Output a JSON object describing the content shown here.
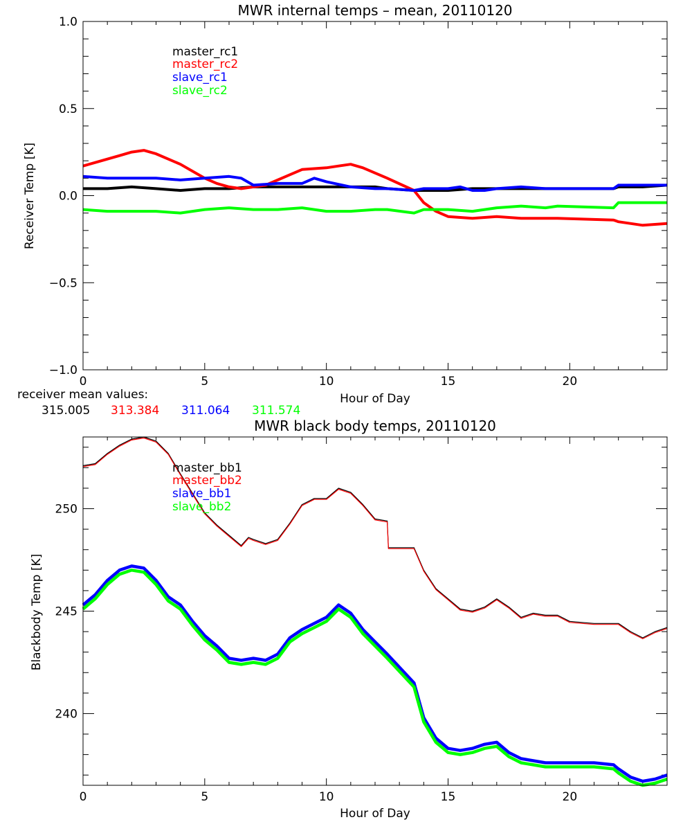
{
  "chart_data": [
    {
      "type": "line",
      "title": "MWR internal temps – mean, 20110120",
      "xlabel": "Hour of Day",
      "ylabel": "Receiver Temp [K]",
      "xlim": [
        0,
        24
      ],
      "ylim": [
        -1.0,
        1.0
      ],
      "xticks": [
        0,
        5,
        10,
        15,
        20
      ],
      "xtick_labels": [
        "0",
        "5",
        "10",
        "15",
        "20"
      ],
      "yticks": [
        -1.0,
        -0.5,
        0.0,
        0.5,
        1.0
      ],
      "ytick_labels": [
        "−1.0",
        "−0.5",
        "0.0",
        "0.5",
        "1.0"
      ],
      "grid": false,
      "legend_position": "top-left",
      "series": [
        {
          "name": "master_rc1",
          "color": "#000000",
          "x": [
            0,
            1,
            2,
            3,
            4,
            5,
            6,
            7,
            8,
            9,
            10,
            11,
            12,
            12.5,
            13.6,
            14,
            15,
            16,
            17,
            18,
            19,
            19.5,
            21.8,
            22,
            23,
            24
          ],
          "y": [
            0.04,
            0.04,
            0.05,
            0.04,
            0.03,
            0.04,
            0.04,
            0.05,
            0.05,
            0.05,
            0.05,
            0.05,
            0.05,
            0.04,
            0.03,
            0.03,
            0.03,
            0.04,
            0.04,
            0.04,
            0.04,
            0.04,
            0.04,
            0.05,
            0.05,
            0.06
          ]
        },
        {
          "name": "master_rc2",
          "color": "#ff0000",
          "x": [
            0,
            0.5,
            1,
            1.5,
            2,
            2.5,
            3,
            4,
            5,
            5.5,
            6,
            6.5,
            7,
            7.5,
            8,
            8.5,
            9,
            10,
            10.5,
            11,
            11.5,
            12,
            12.5,
            13.6,
            14,
            14.5,
            15,
            16,
            17,
            18,
            19,
            19.5,
            21.8,
            22,
            23,
            24
          ],
          "y": [
            0.17,
            0.19,
            0.21,
            0.23,
            0.25,
            0.26,
            0.24,
            0.18,
            0.1,
            0.07,
            0.05,
            0.04,
            0.05,
            0.06,
            0.09,
            0.12,
            0.15,
            0.16,
            0.17,
            0.18,
            0.16,
            0.13,
            0.1,
            0.03,
            -0.04,
            -0.09,
            -0.12,
            -0.13,
            -0.12,
            -0.13,
            -0.13,
            -0.13,
            -0.14,
            -0.15,
            -0.17,
            -0.16
          ]
        },
        {
          "name": "slave_rc1",
          "color": "#0000ff",
          "x": [
            0,
            1,
            2,
            3,
            4,
            5,
            6,
            6.5,
            7,
            8,
            9,
            9.5,
            10,
            11,
            12,
            12.5,
            13.6,
            14,
            15,
            15.5,
            16,
            16.5,
            17,
            18,
            19,
            19.5,
            21.8,
            22,
            23,
            24
          ],
          "y": [
            0.11,
            0.1,
            0.1,
            0.1,
            0.09,
            0.1,
            0.11,
            0.1,
            0.06,
            0.07,
            0.07,
            0.1,
            0.08,
            0.05,
            0.04,
            0.04,
            0.03,
            0.04,
            0.04,
            0.05,
            0.03,
            0.03,
            0.04,
            0.05,
            0.04,
            0.04,
            0.04,
            0.06,
            0.06,
            0.06
          ]
        },
        {
          "name": "slave_rc2",
          "color": "#00ff00",
          "x": [
            0,
            1,
            2,
            3,
            4,
            5,
            6,
            7,
            8,
            9,
            10,
            11,
            12,
            12.5,
            13.6,
            14,
            15,
            16,
            17,
            18,
            19,
            19.5,
            21.8,
            22,
            23,
            24
          ],
          "y": [
            -0.08,
            -0.09,
            -0.09,
            -0.09,
            -0.1,
            -0.08,
            -0.07,
            -0.08,
            -0.08,
            -0.07,
            -0.09,
            -0.09,
            -0.08,
            -0.08,
            -0.1,
            -0.08,
            -0.08,
            -0.09,
            -0.07,
            -0.06,
            -0.07,
            -0.06,
            -0.07,
            -0.04,
            -0.04,
            -0.04
          ]
        }
      ],
      "annotation": {
        "label": "receiver mean values:",
        "values": [
          {
            "text": "315.005",
            "color": "#000000"
          },
          {
            "text": "313.384",
            "color": "#ff0000"
          },
          {
            "text": "311.064",
            "color": "#0000ff"
          },
          {
            "text": "311.574",
            "color": "#00ff00"
          }
        ]
      }
    },
    {
      "type": "line",
      "title": "MWR black body temps, 20110120",
      "xlabel": "Hour of Day",
      "ylabel": "Blackbody Temp [K]",
      "xlim": [
        0,
        24
      ],
      "ylim": [
        236.5,
        253.5
      ],
      "xticks": [
        0,
        5,
        10,
        15,
        20
      ],
      "xtick_labels": [
        "0",
        "5",
        "10",
        "15",
        "20"
      ],
      "yticks": [
        240,
        245,
        250
      ],
      "ytick_labels": [
        "240",
        "245",
        "250"
      ],
      "grid": false,
      "legend_position": "top-left",
      "series": [
        {
          "name": "master_bb1",
          "color": "#000000",
          "x": [
            0,
            0.5,
            1,
            1.5,
            2,
            2.5,
            3,
            3.5,
            4,
            5,
            5.5,
            6,
            6.5,
            6.8,
            7,
            7.5,
            8,
            8.5,
            9,
            9.5,
            10,
            10.5,
            11,
            11.5,
            12,
            12.5,
            12.55,
            13.6,
            14,
            14.5,
            15,
            15.5,
            16,
            16.5,
            17,
            17.5,
            18,
            18.5,
            19,
            19.5,
            20,
            21,
            22,
            22.5,
            23,
            23.5,
            24
          ],
          "y": [
            252.1,
            252.2,
            252.7,
            253.1,
            253.4,
            253.5,
            253.3,
            252.7,
            251.7,
            249.8,
            249.2,
            248.7,
            248.2,
            248.6,
            248.5,
            248.3,
            248.5,
            249.3,
            250.2,
            250.5,
            250.5,
            251.0,
            250.8,
            250.2,
            249.5,
            249.4,
            248.1,
            248.1,
            247.0,
            246.1,
            245.6,
            245.1,
            245.0,
            245.2,
            245.6,
            245.2,
            244.7,
            244.9,
            244.8,
            244.8,
            244.5,
            244.4,
            244.4,
            244.0,
            243.7,
            244.0,
            244.2
          ]
        },
        {
          "name": "master_bb2",
          "color": "#ff0000",
          "x": [
            0,
            0.5,
            1,
            1.5,
            2,
            2.5,
            3,
            3.5,
            4,
            5,
            5.5,
            6,
            6.5,
            6.8,
            7,
            7.5,
            8,
            8.5,
            9,
            9.5,
            10,
            10.5,
            11,
            11.5,
            12,
            12.5,
            12.55,
            13.6,
            14,
            14.5,
            15,
            15.5,
            16,
            16.5,
            17,
            17.5,
            18,
            18.5,
            19,
            19.5,
            20,
            21,
            22,
            22.5,
            23,
            23.5,
            24
          ],
          "y": [
            252.05,
            252.15,
            252.65,
            253.05,
            253.35,
            253.45,
            253.25,
            252.65,
            251.65,
            249.75,
            249.15,
            248.65,
            248.15,
            248.55,
            248.45,
            248.25,
            248.45,
            249.25,
            250.15,
            250.45,
            250.45,
            250.95,
            250.75,
            250.15,
            249.45,
            249.35,
            248.05,
            248.05,
            246.95,
            246.05,
            245.55,
            245.05,
            244.95,
            245.15,
            245.55,
            245.15,
            244.65,
            244.85,
            244.75,
            244.75,
            244.45,
            244.35,
            244.35,
            243.95,
            243.65,
            243.95,
            244.15
          ]
        },
        {
          "name": "slave_bb1",
          "color": "#0000ff",
          "x": [
            0,
            0.5,
            1,
            1.5,
            2,
            2.5,
            3,
            3.5,
            4,
            4.5,
            5,
            5.5,
            6,
            6.5,
            7,
            7.5,
            8,
            8.5,
            9,
            9.5,
            10,
            10.5,
            11,
            11.5,
            12,
            12.5,
            13.6,
            14,
            14.5,
            15,
            15.5,
            16,
            16.5,
            17,
            17.5,
            18,
            18.5,
            19,
            19.5,
            20,
            21,
            21.8,
            22,
            22.5,
            23,
            23.5,
            24
          ],
          "y": [
            245.3,
            245.8,
            246.5,
            247.0,
            247.2,
            247.1,
            246.5,
            245.7,
            245.3,
            244.5,
            243.8,
            243.3,
            242.7,
            242.6,
            242.7,
            242.6,
            242.9,
            243.7,
            244.1,
            244.4,
            244.7,
            245.3,
            244.9,
            244.1,
            243.5,
            242.9,
            241.5,
            239.8,
            238.8,
            238.3,
            238.2,
            238.3,
            238.5,
            238.6,
            238.1,
            237.8,
            237.7,
            237.6,
            237.6,
            237.6,
            237.6,
            237.5,
            237.3,
            236.9,
            236.7,
            236.8,
            237.0
          ]
        },
        {
          "name": "slave_bb2",
          "color": "#00ff00",
          "x": [
            0,
            0.5,
            1,
            1.5,
            2,
            2.5,
            3,
            3.5,
            4,
            4.5,
            5,
            5.5,
            6,
            6.5,
            7,
            7.5,
            8,
            8.5,
            9,
            9.5,
            10,
            10.5,
            11,
            11.5,
            12,
            12.5,
            13.6,
            14,
            14.5,
            15,
            15.5,
            16,
            16.5,
            17,
            17.5,
            18,
            18.5,
            19,
            19.5,
            20,
            21,
            21.8,
            22,
            22.5,
            23,
            23.5,
            24
          ],
          "y": [
            245.1,
            245.6,
            246.3,
            246.8,
            247.0,
            246.9,
            246.3,
            245.5,
            245.1,
            244.3,
            243.6,
            243.1,
            242.5,
            242.4,
            242.5,
            242.4,
            242.7,
            243.5,
            243.9,
            244.2,
            244.5,
            245.1,
            244.7,
            243.9,
            243.3,
            242.7,
            241.3,
            239.6,
            238.6,
            238.1,
            238.0,
            238.1,
            238.3,
            238.4,
            237.9,
            237.6,
            237.5,
            237.4,
            237.4,
            237.4,
            237.4,
            237.3,
            237.1,
            236.7,
            236.5,
            236.6,
            236.8
          ]
        }
      ]
    }
  ]
}
